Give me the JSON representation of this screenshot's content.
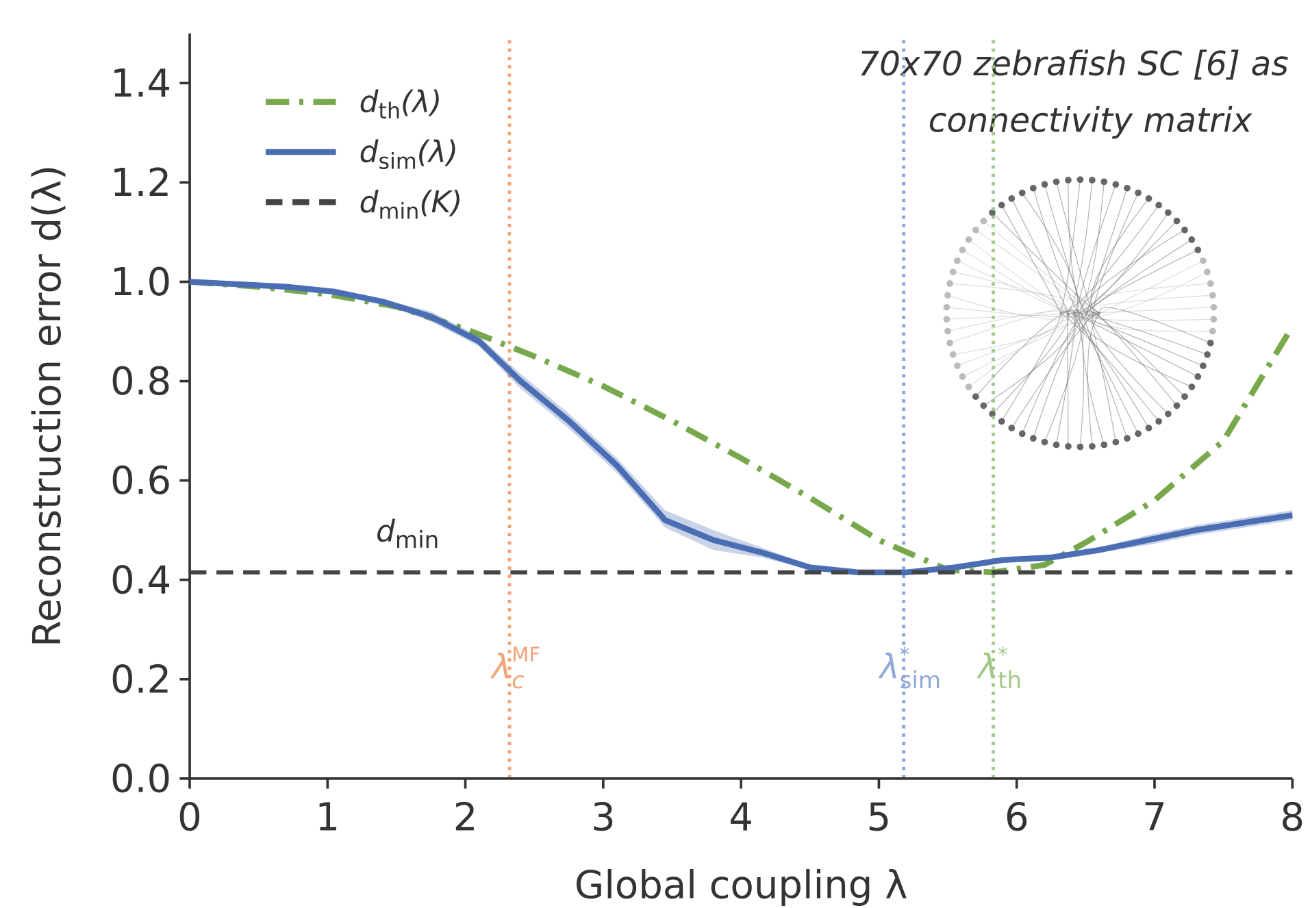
{
  "chart_data": {
    "type": "line",
    "xlabel": "Global coupling λ",
    "ylabel": "Reconstruction error d(λ)",
    "xlim": [
      0,
      8
    ],
    "ylim": [
      0,
      1.5
    ],
    "xticks": [
      0,
      1,
      2,
      3,
      4,
      5,
      6,
      7,
      8
    ],
    "yticks": [
      {
        "value": 0,
        "label": "0.0"
      },
      0.2,
      0.4,
      0.6,
      0.8,
      {
        "value": 1,
        "label": "1.0"
      },
      1.2,
      1.4
    ],
    "legend": "upper left",
    "annotation": [
      "70x70 zebrafish SC [6] as",
      "connectivity matrix"
    ],
    "series": [
      {
        "name": [
          "d",
          "th",
          "(λ)"
        ],
        "color": "#77a84c",
        "style": "dashdot",
        "x": [
          0,
          0.5,
          1,
          1.5,
          2,
          2.5,
          3,
          3.5,
          4,
          4.5,
          5,
          5.5,
          5.83,
          6.2,
          6.5,
          7,
          7.5,
          8
        ],
        "values": [
          1.0,
          0.99,
          0.975,
          0.95,
          0.905,
          0.85,
          0.79,
          0.72,
          0.645,
          0.565,
          0.48,
          0.42,
          0.415,
          0.43,
          0.475,
          0.56,
          0.68,
          0.91
        ]
      },
      {
        "name": [
          "d",
          "sim",
          "(λ)"
        ],
        "color": "#4a6db3",
        "style": "solid",
        "x": [
          0,
          0.35,
          0.7,
          1.05,
          1.4,
          1.75,
          2.1,
          2.4,
          2.75,
          3.1,
          3.45,
          3.8,
          4.15,
          4.5,
          4.85,
          5.2,
          5.55,
          5.9,
          6.25,
          6.6,
          6.95,
          7.3,
          7.65,
          8
        ],
        "values": [
          1.0,
          0.995,
          0.99,
          0.98,
          0.96,
          0.93,
          0.88,
          0.8,
          0.72,
          0.63,
          0.52,
          0.48,
          0.455,
          0.425,
          0.415,
          0.415,
          0.425,
          0.44,
          0.445,
          0.46,
          0.48,
          0.5,
          0.515,
          0.53
        ],
        "lower": [
          1.0,
          0.99,
          0.985,
          0.975,
          0.955,
          0.92,
          0.87,
          0.785,
          0.705,
          0.615,
          0.505,
          0.46,
          0.445,
          0.42,
          0.41,
          0.41,
          0.42,
          0.435,
          0.44,
          0.455,
          0.47,
          0.49,
          0.505,
          0.52
        ],
        "upper": [
          1.0,
          1.0,
          0.995,
          0.985,
          0.965,
          0.94,
          0.89,
          0.815,
          0.735,
          0.645,
          0.54,
          0.5,
          0.465,
          0.43,
          0.42,
          0.42,
          0.43,
          0.445,
          0.45,
          0.465,
          0.49,
          0.51,
          0.525,
          0.54
        ]
      },
      {
        "name": [
          "d",
          "min",
          "(K)"
        ],
        "color": "#444444",
        "style": "dashed",
        "hline": 0.415,
        "label": [
          "d",
          "min"
        ]
      }
    ],
    "vlines": [
      {
        "x": 2.32,
        "color": "#f0a47a",
        "label": [
          "λ",
          "c",
          "MF"
        ]
      },
      {
        "x": 5.18,
        "color": "#8fa8d8",
        "label": [
          "λ",
          "sim",
          "*"
        ]
      },
      {
        "x": 5.83,
        "color": "#a4c88a",
        "label": [
          "λ",
          "th",
          "*"
        ]
      }
    ]
  }
}
